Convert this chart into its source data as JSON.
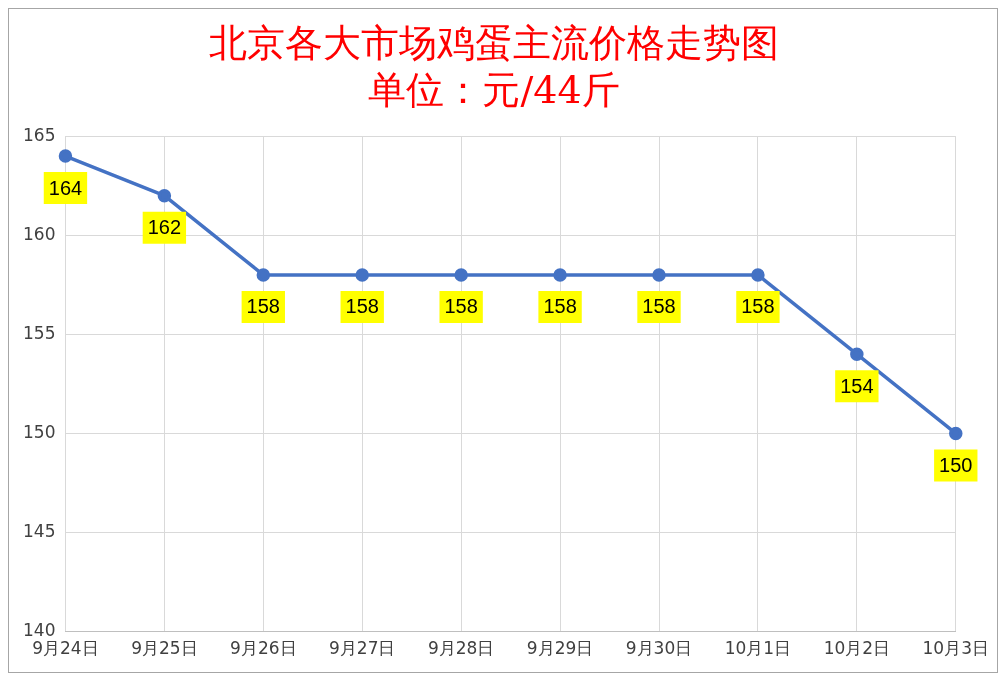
{
  "chart_data": {
    "type": "line",
    "title": "北京各大市场鸡蛋主流价格走势图",
    "subtitle": "单位：元/44斤",
    "categories": [
      "9月24日",
      "9月25日",
      "9月26日",
      "9月27日",
      "9月28日",
      "9月29日",
      "9月30日",
      "10月1日",
      "10月2日",
      "10月3日"
    ],
    "series": [
      {
        "color": "#4472c4",
        "values": [
          164,
          162,
          158,
          158,
          158,
          158,
          158,
          158,
          154,
          150
        ]
      }
    ],
    "ylim": [
      140,
      165
    ],
    "yticks": [
      140,
      145,
      150,
      155,
      160,
      165
    ],
    "grid": true,
    "legend": false,
    "marker": "circle",
    "line_style": "solid",
    "data_labels": true
  }
}
